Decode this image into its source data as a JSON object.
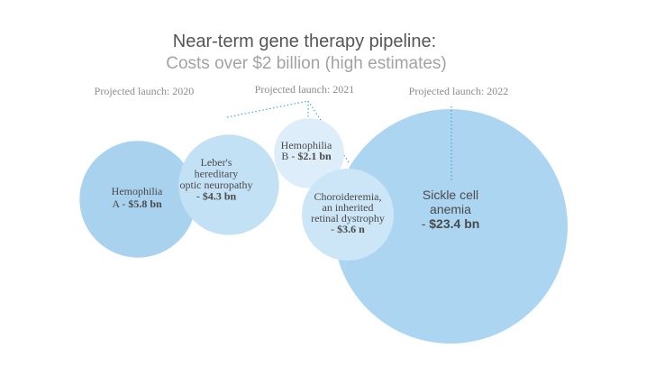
{
  "chart_data": {
    "type": "bubble",
    "title": "Near-term gene therapy pipeline:",
    "subtitle": "Costs over $2 billion (high estimates)",
    "launch_labels": [
      "Projected launch: 2020",
      "Projected launch: 2021",
      "Projected launch: 2022"
    ],
    "bubbles": [
      {
        "name_lines": [
          "Hemophilia",
          "A -"
        ],
        "value_label": "$5.8 bn",
        "value": 5.8,
        "launch": "2020",
        "color": "#a9d2ef"
      },
      {
        "name_lines": [
          "Leber's",
          "hereditary",
          "optic neuropathy",
          "-"
        ],
        "value_label": "$4.3 bn",
        "value": 4.3,
        "launch": "2020",
        "color": "#c3e1f5"
      },
      {
        "name_lines": [
          "Hemophilia",
          "B -"
        ],
        "value_label": "$2.1 bn",
        "value": 2.1,
        "launch": "2021",
        "color": "#ddeefa"
      },
      {
        "name_lines": [
          "Sickle cell",
          "anemia",
          "-"
        ],
        "value_label": "$23.4 bn",
        "value": 23.4,
        "launch": "2022",
        "color": "#acd5f2"
      },
      {
        "name_lines": [
          "Choroideremia,",
          "an inherited",
          "retinal dystrophy",
          "-"
        ],
        "value_label": "$3.6 n",
        "value": 3.6,
        "launch": "2021",
        "color": "#cce6f7"
      }
    ]
  }
}
